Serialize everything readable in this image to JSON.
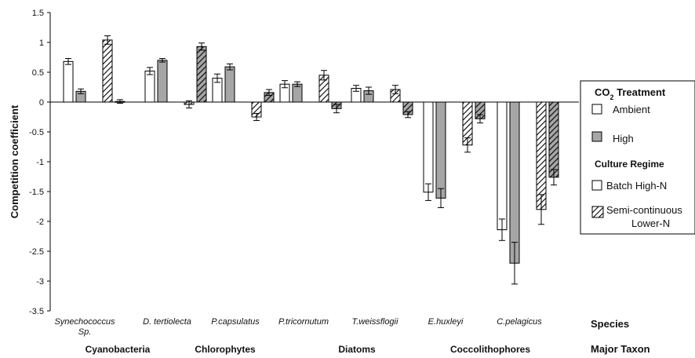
{
  "chart_data": {
    "type": "bar",
    "ylabel": "Competition coefficient",
    "ylim": [
      -3.5,
      1.5
    ],
    "yticks": [
      "1.5",
      "1",
      "0.5",
      "0",
      "-0.5",
      "-1",
      "-1.5",
      "-2",
      "-2.5",
      "-3",
      "-3.5"
    ],
    "species": [
      {
        "label_lines": [
          "Synechococcus",
          "Sp."
        ],
        "bars": [
          {
            "style": "ambient",
            "value": 0.68,
            "err": 0.05
          },
          {
            "style": "high",
            "value": 0.18,
            "err": 0.04
          },
          {
            "style": "ambient-hatch",
            "value": 1.04,
            "err": 0.07
          },
          {
            "style": "high-hatch",
            "value": 0.01,
            "err": 0.03
          }
        ]
      },
      {
        "label_lines": [
          "D. tertiolecta"
        ],
        "bars": [
          {
            "style": "ambient",
            "value": 0.52,
            "err": 0.06
          },
          {
            "style": "high",
            "value": 0.7,
            "err": 0.03
          },
          {
            "style": "ambient-hatch",
            "value": -0.04,
            "err": 0.06
          },
          {
            "style": "high-hatch",
            "value": 0.93,
            "err": 0.06
          }
        ]
      },
      {
        "label_lines": [
          "P.capsulatus"
        ],
        "bars": [
          {
            "style": "ambient",
            "value": 0.4,
            "err": 0.07
          },
          {
            "style": "high",
            "value": 0.59,
            "err": 0.05
          },
          {
            "style": "ambient-hatch",
            "value": -0.25,
            "err": 0.06
          },
          {
            "style": "high-hatch",
            "value": 0.16,
            "err": 0.05
          }
        ]
      },
      {
        "label_lines": [
          "P.tricornutum"
        ],
        "bars": [
          {
            "style": "ambient",
            "value": 0.3,
            "err": 0.06
          },
          {
            "style": "high",
            "value": 0.3,
            "err": 0.04
          },
          {
            "style": "ambient-hatch",
            "value": 0.45,
            "err": 0.08
          },
          {
            "style": "high-hatch",
            "value": -0.11,
            "err": 0.07
          }
        ]
      },
      {
        "label_lines": [
          "T.weissflogii"
        ],
        "bars": [
          {
            "style": "ambient",
            "value": 0.23,
            "err": 0.05
          },
          {
            "style": "high",
            "value": 0.19,
            "err": 0.06
          },
          {
            "style": "ambient-hatch",
            "value": 0.21,
            "err": 0.07
          },
          {
            "style": "high-hatch",
            "value": -0.21,
            "err": 0.05
          }
        ]
      },
      {
        "label_lines": [
          "E.huxleyi"
        ],
        "bars": [
          {
            "style": "ambient",
            "value": -1.51,
            "err": 0.14
          },
          {
            "style": "high",
            "value": -1.61,
            "err": 0.16
          },
          {
            "style": "ambient-hatch",
            "value": -0.72,
            "err": 0.12
          },
          {
            "style": "high-hatch",
            "value": -0.28,
            "err": 0.07
          }
        ]
      },
      {
        "label_lines": [
          "C.pelagicus"
        ],
        "bars": [
          {
            "style": "ambient",
            "value": -2.14,
            "err": 0.18
          },
          {
            "style": "high",
            "value": -2.7,
            "err": 0.35
          },
          {
            "style": "ambient-hatch",
            "value": -1.8,
            "err": 0.25
          },
          {
            "style": "high-hatch",
            "value": -1.26,
            "err": 0.13
          }
        ]
      }
    ],
    "taxa": [
      "Cyanobacteria",
      "Chlorophytes",
      "Diatoms",
      "Coccolithophores"
    ],
    "row_labels": {
      "species": "Species",
      "taxon": "Major Taxon"
    },
    "legend": {
      "co2_title": "CO",
      "co2_sub": "2",
      "co2_title_rest": " Treatment",
      "ambient": "Ambient",
      "high": "High",
      "culture_title": "Culture Regime",
      "batch": "Batch High-N",
      "semi_line1": "Semi-continuous",
      "semi_line2": "Lower-N"
    },
    "colors": {
      "ambient": "#ffffff",
      "high": "#a6a6a6",
      "stroke": "#000000",
      "hatch": "#000000"
    }
  }
}
